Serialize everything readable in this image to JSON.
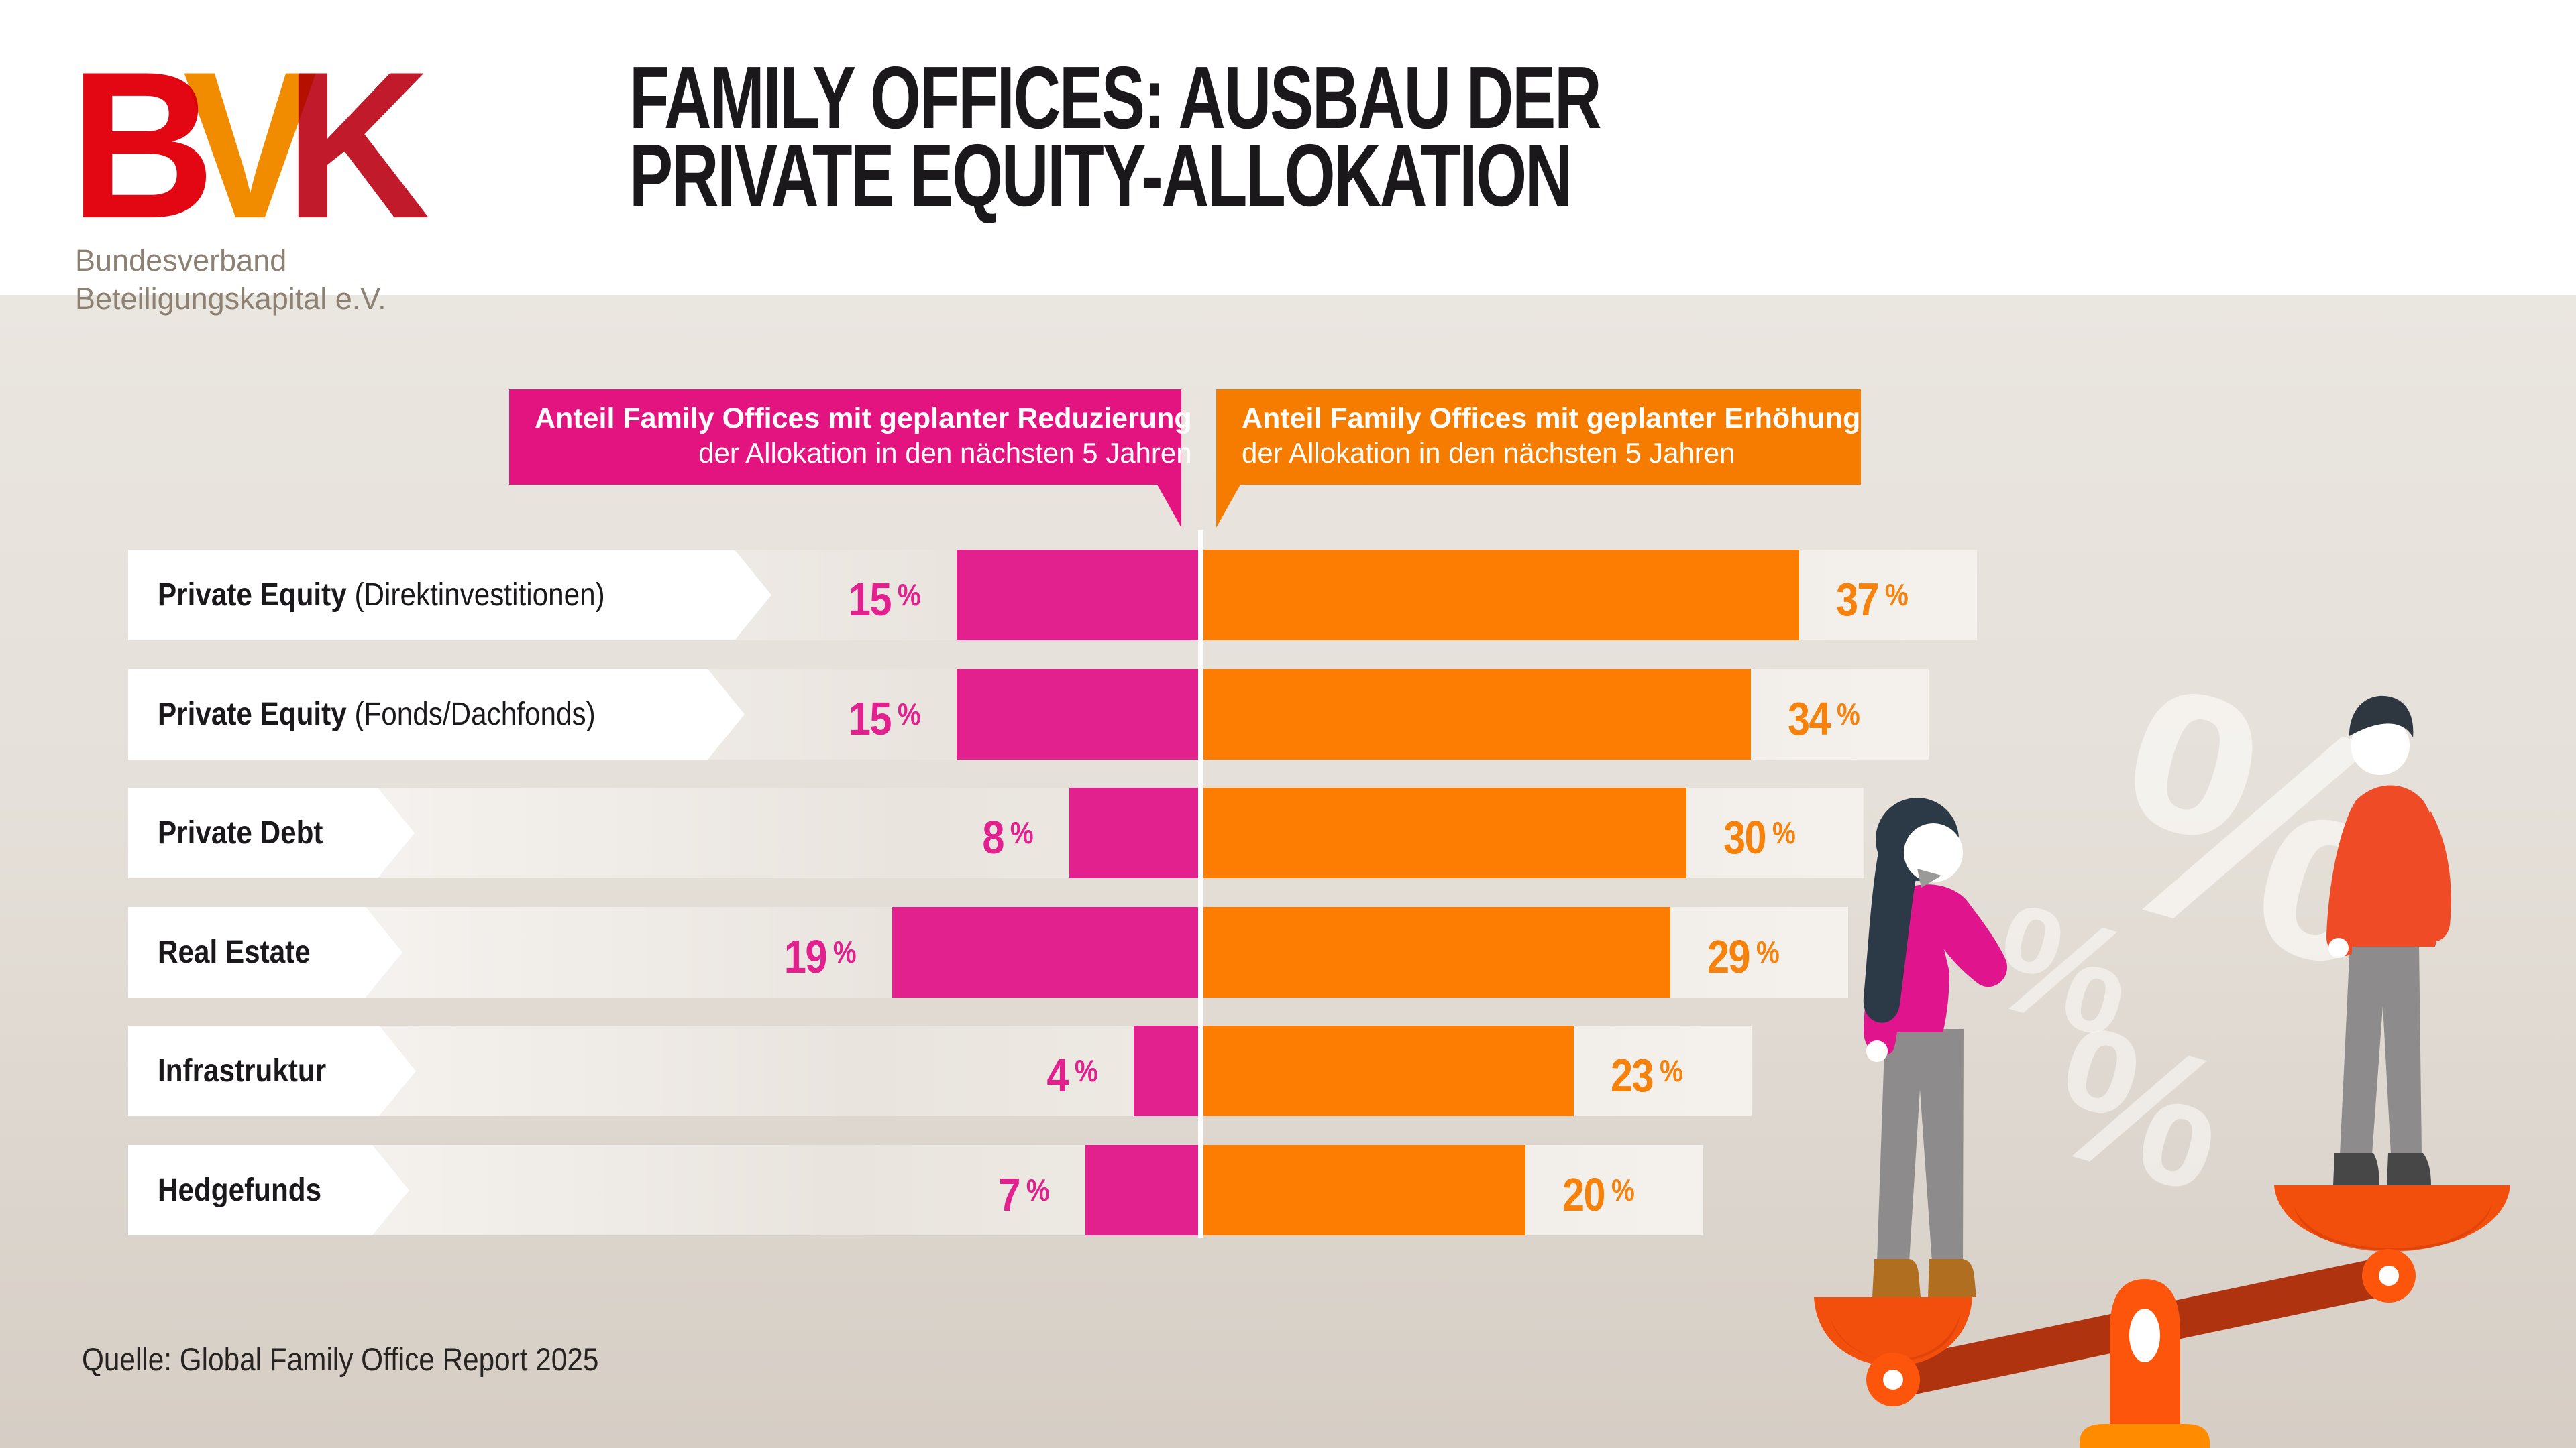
{
  "header": {
    "logo": {
      "letters": [
        "B",
        "V",
        "K"
      ],
      "subtitle_lines": [
        "Bundesverband",
        "Beteiligungskapital e.V."
      ],
      "letter_colors": [
        "#E30613",
        "#F18C00",
        "#C01A2B"
      ]
    },
    "title_lines": [
      "FAMILY OFFICES: AUSBAU DER",
      "PRIVATE EQUITY-ALLOKATION"
    ]
  },
  "legend": {
    "decrease": {
      "line_bold": "Anteil Family Offices mit geplanter Reduzierung",
      "line_rest": "der Allokation in den nächsten 5 Jahren",
      "color": "#E3137F"
    },
    "increase": {
      "line_bold": "Anteil Family Offices mit geplanter Erhöhung",
      "line_rest": "der Allokation in den nächsten 5 Jahren",
      "color": "#F67C00"
    }
  },
  "chart_data": {
    "type": "bar",
    "orientation": "horizontal-diverging",
    "unit": "%",
    "categories": [
      {
        "bold": "Private Equity",
        "rest": "(Direktinvestitionen)"
      },
      {
        "bold": "Private Equity",
        "rest": "(Fonds/Dachfonds)"
      },
      {
        "bold": "Private Debt",
        "rest": ""
      },
      {
        "bold": "Real Estate",
        "rest": ""
      },
      {
        "bold": "Infrastruktur",
        "rest": ""
      },
      {
        "bold": "Hedgefunds",
        "rest": ""
      }
    ],
    "series": [
      {
        "name": "Geplante Reduzierung",
        "color": "#E2218F",
        "values": [
          15,
          15,
          8,
          19,
          4,
          7
        ]
      },
      {
        "name": "Geplante Erhöhung",
        "color": "#FC7D01",
        "values": [
          37,
          34,
          30,
          29,
          23,
          20
        ]
      }
    ],
    "value_labels_decrease": [
      "15 %",
      "15 %",
      "8 %",
      "19 %",
      "4 %",
      "7 %"
    ],
    "value_labels_increase": [
      "37 %",
      "34 %",
      "30 %",
      "29 %",
      "23 %",
      "20 %"
    ],
    "xlim_per_side": [
      0,
      40
    ],
    "grid": false,
    "legend_position": "top"
  },
  "source": "Quelle: Global Family Office Report 2025",
  "illustration": {
    "percent_watermarks": [
      "%",
      "%",
      "%"
    ],
    "scene": "Frau und Mann auf einer Waage"
  }
}
